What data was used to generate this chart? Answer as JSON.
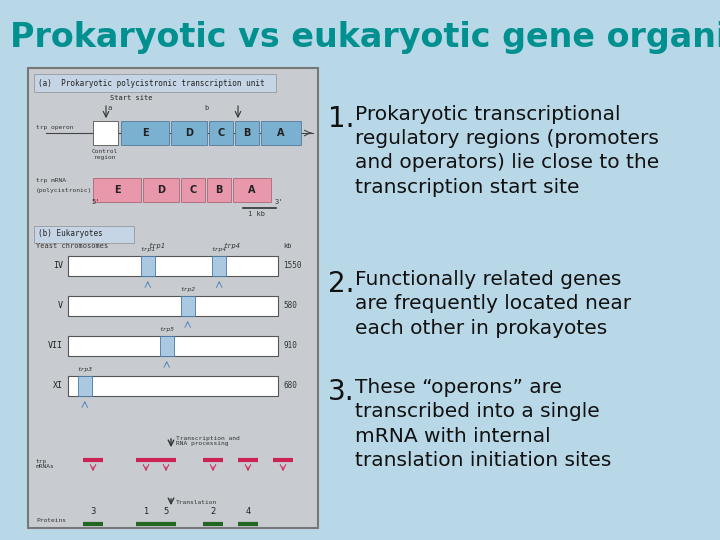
{
  "title": "Prokaryotic vs eukaryotic gene organization",
  "title_color": "#009090",
  "bg_color": "#b8d8e8",
  "item1_num": "1.",
  "item1_text": "Prokaryotic transcriptional\nregulatory regions (promoters\nand operators) lie close to the\ntranscription start site",
  "item2_num": "2.",
  "item2_text": "Functionally related genes\nare frequently located near\neach other in prokayotes",
  "item3_num": "3.",
  "item3_text": "These “operons” are\ntranscribed into a single\nmRNA with internal\ntranslation initiation sites",
  "text_color": "#111111",
  "panel_edge": "#888888",
  "panel_fill": "#c8ccd0",
  "gene_blue": "#7ab0d0",
  "gene_pink": "#e898aa",
  "chr_blue": "#aac8e0",
  "label_a_fill": "#c5d5e5",
  "label_b_fill": "#c5d5e5"
}
